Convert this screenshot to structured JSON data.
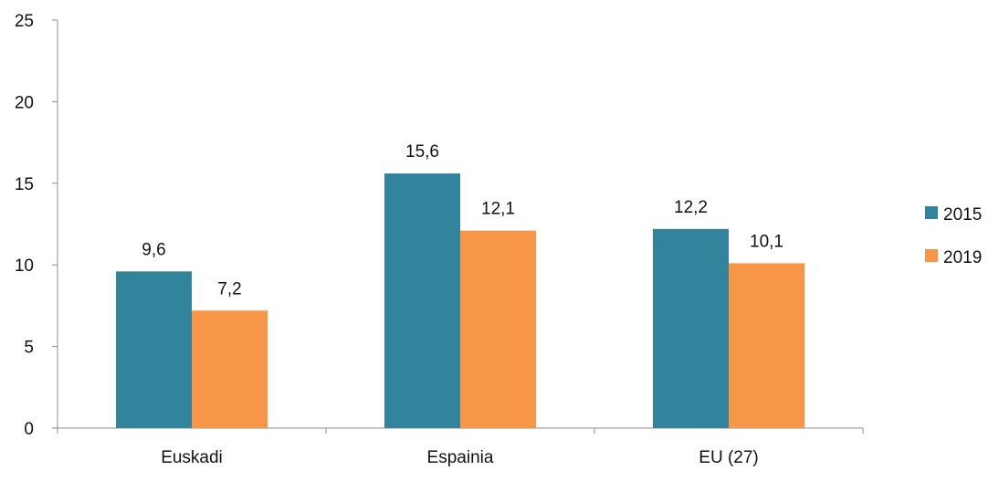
{
  "chart_data": {
    "type": "bar",
    "categories": [
      "Euskadi",
      "Espainia",
      "EU (27)"
    ],
    "series": [
      {
        "name": "2015",
        "values": [
          9.6,
          15.6,
          12.2
        ],
        "data_labels": [
          "9,6",
          "15,6",
          "12,2"
        ],
        "color": "#31849b"
      },
      {
        "name": "2019",
        "values": [
          7.2,
          12.1,
          10.1
        ],
        "data_labels": [
          "7,2",
          "12,1",
          "10,1"
        ],
        "color": "#f79646"
      }
    ],
    "ylim": [
      0,
      25
    ],
    "yticks": [
      0,
      5,
      10,
      15,
      20,
      25
    ],
    "title": "",
    "xlabel": "",
    "ylabel": "",
    "grid": false,
    "legend_position": "right"
  }
}
